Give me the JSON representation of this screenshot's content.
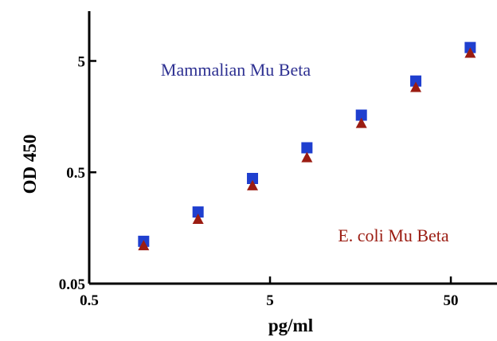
{
  "chart_data": {
    "type": "scatter",
    "title": "",
    "xlabel": "pg/ml",
    "ylabel": "OD 450",
    "x_scale": "log",
    "y_scale": "log",
    "xlim": [
      0.5,
      90
    ],
    "ylim": [
      0.05,
      14
    ],
    "x_ticks": [
      "0.5",
      "5",
      "50"
    ],
    "y_ticks": [
      "0.05",
      "0.5",
      "5"
    ],
    "grid": false,
    "series": [
      {
        "name": "Mammalian Mu Beta",
        "marker": "square",
        "color": "#1f3fcf",
        "label_color": "#2e3192",
        "x": [
          1.0,
          2.0,
          4.0,
          8.0,
          16.0,
          32.0,
          64.0
        ],
        "y": [
          0.12,
          0.22,
          0.44,
          0.83,
          1.63,
          3.3,
          6.6
        ]
      },
      {
        "name": "E. coli Mu Beta",
        "marker": "triangle",
        "color": "#9b1c12",
        "label_color": "#9b1c12",
        "x": [
          1.0,
          2.0,
          4.0,
          8.0,
          16.0,
          32.0,
          64.0
        ],
        "y": [
          0.11,
          0.19,
          0.38,
          0.68,
          1.38,
          2.9,
          5.9
        ]
      }
    ]
  }
}
